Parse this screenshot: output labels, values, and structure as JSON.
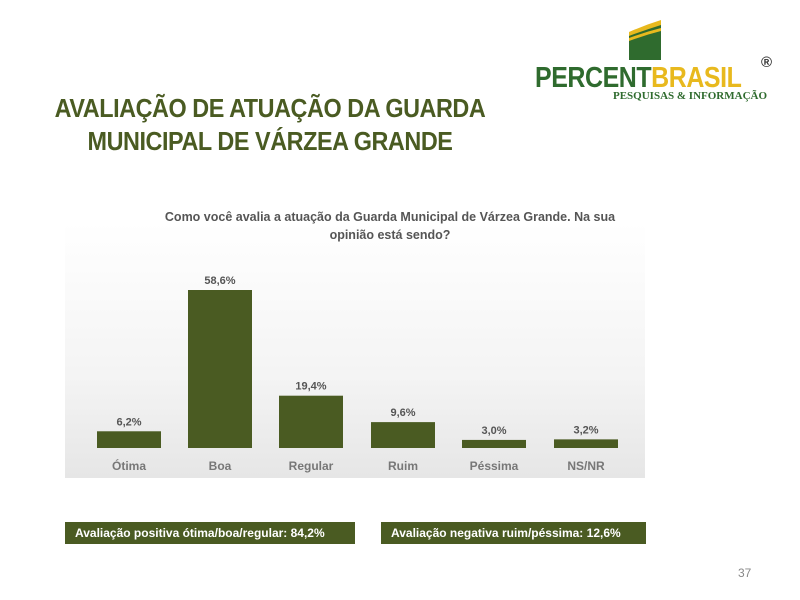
{
  "title": {
    "line1": "AVALIAÇÃO DE ATUAÇÃO DA GUARDA",
    "line2": "MUNICIPAL DE VÁRZEA GRANDE"
  },
  "logo": {
    "brand_part1": "PERCENT",
    "brand_part2": "BRASIL",
    "registered": "®",
    "tagline": "PESQUISAS & INFORMAÇÃO",
    "colors": {
      "green": "#2f6b2e",
      "yellow": "#e8b91e"
    }
  },
  "chart_data": {
    "type": "bar",
    "title": "Como você avalia a atuação da Guarda Municipal de Várzea Grande. Na sua opinião está sendo?",
    "title_lines": [
      "Como você avalia a atuação da Guarda Municipal de Várzea Grande. Na sua",
      "opinião está sendo?"
    ],
    "categories": [
      "Ótima",
      "Boa",
      "Regular",
      "Ruim",
      "Péssima",
      "NS/NR"
    ],
    "values": [
      6.2,
      58.6,
      19.4,
      9.6,
      3.0,
      3.2
    ],
    "labels": [
      "6,2%",
      "58,6%",
      "19,4%",
      "9,6%",
      "3,0%",
      "3,2%"
    ],
    "unit": "%",
    "ylim": [
      0,
      60
    ],
    "grid": false,
    "bar_color": "#4a5b22"
  },
  "summary": {
    "positive": "Avaliação positiva ótima/boa/regular: 84,2%",
    "negative": "Avaliação negativa ruim/péssima: 12,6%"
  },
  "page_number": "37"
}
